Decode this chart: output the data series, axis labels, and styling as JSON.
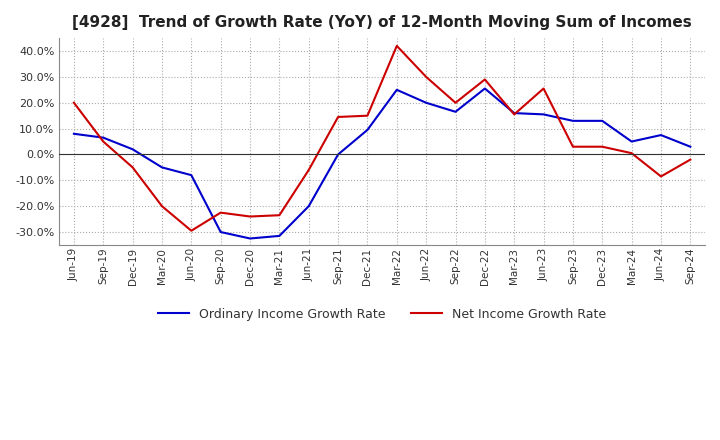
{
  "title": "[4928]  Trend of Growth Rate (YoY) of 12-Month Moving Sum of Incomes",
  "title_fontsize": 11,
  "ylim": [
    -35,
    45
  ],
  "yticks": [
    -30,
    -20,
    -10,
    0,
    10,
    20,
    30,
    40
  ],
  "background_color": "#ffffff",
  "grid_color": "#aaaaaa",
  "ordinary_color": "#0000cc",
  "net_color": "#cc0000",
  "x_labels": [
    "Jun-19",
    "Sep-19",
    "Dec-19",
    "Mar-20",
    "Jun-20",
    "Sep-20",
    "Dec-20",
    "Mar-21",
    "Jun-21",
    "Sep-21",
    "Dec-21",
    "Mar-22",
    "Jun-22",
    "Sep-22",
    "Dec-22",
    "Mar-23",
    "Jun-23",
    "Sep-23",
    "Dec-23",
    "Mar-24",
    "Jun-24",
    "Sep-24"
  ],
  "ordinary_income": [
    8.0,
    6.5,
    2.0,
    -5.0,
    -8.0,
    -30.0,
    -32.5,
    -31.5,
    -20.0,
    0.0,
    9.5,
    25.0,
    20.0,
    16.5,
    25.5,
    16.0,
    15.5,
    13.0,
    13.0,
    5.0,
    7.5,
    3.0
  ],
  "net_income": [
    20.0,
    5.0,
    -5.0,
    -20.0,
    -29.5,
    -22.5,
    -24.0,
    -23.5,
    -6.0,
    14.5,
    15.0,
    42.0,
    30.0,
    20.0,
    29.0,
    15.5,
    25.5,
    3.0,
    3.0,
    0.5,
    -8.5,
    -2.0
  ],
  "legend_labels": [
    "Ordinary Income Growth Rate",
    "Net Income Growth Rate"
  ]
}
